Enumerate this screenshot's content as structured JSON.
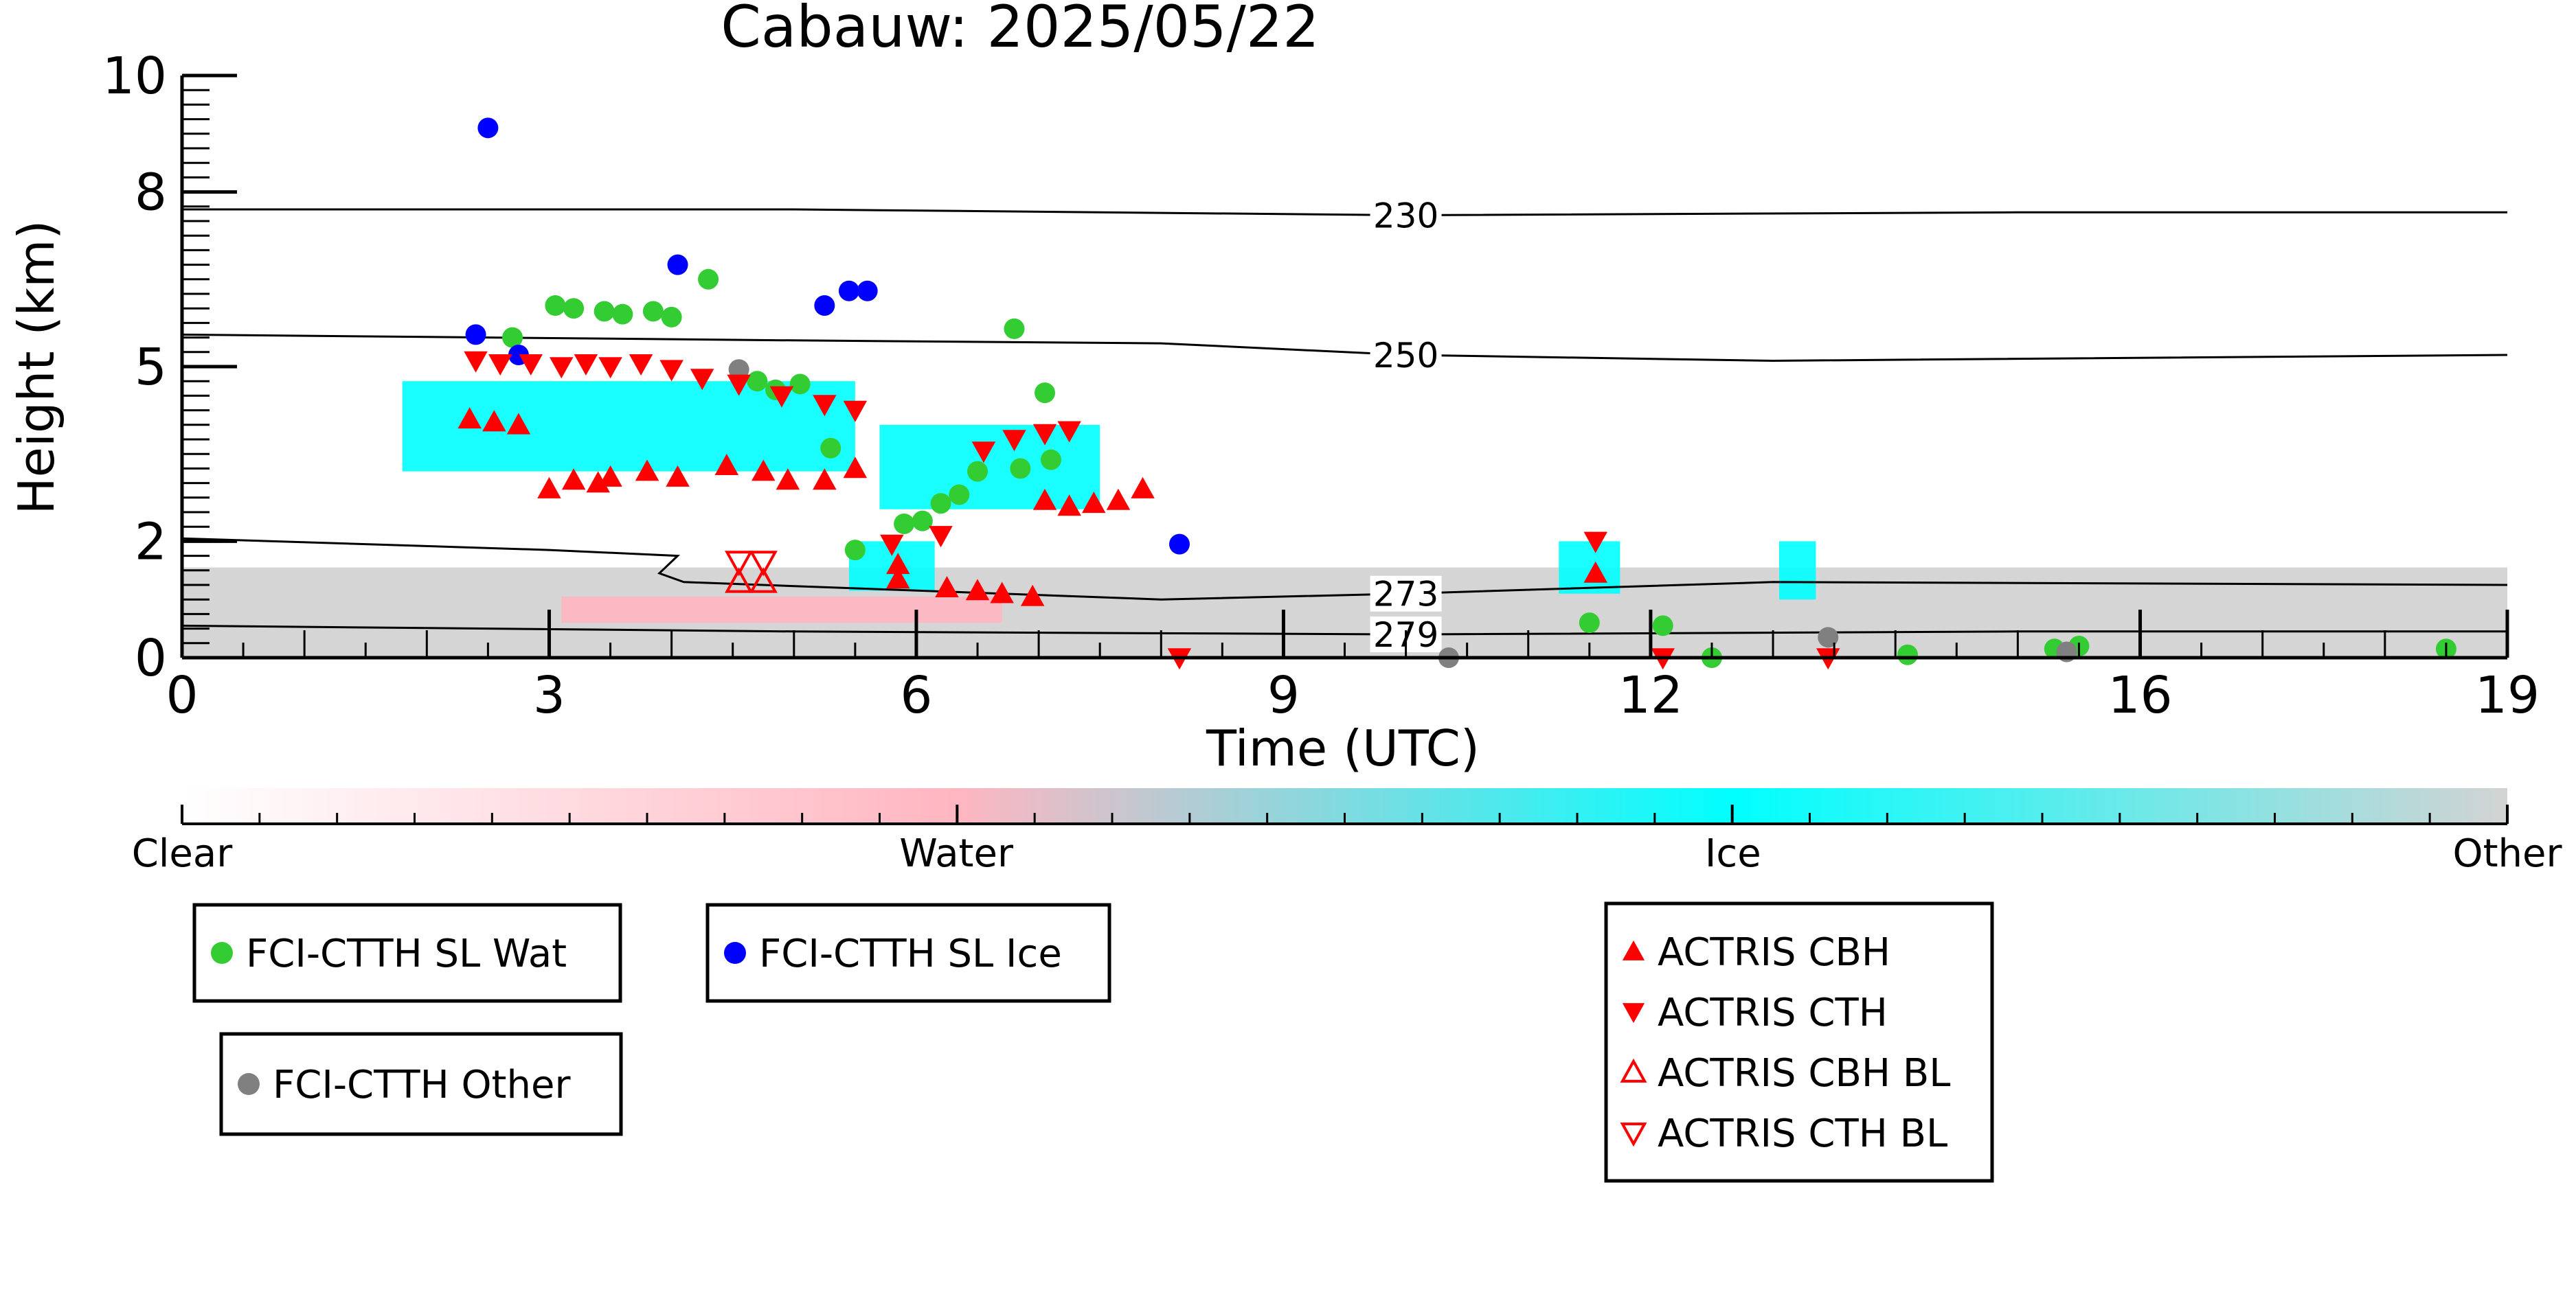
{
  "chart_data": {
    "type": "scatter",
    "title": "Cabauw: 2025/05/22",
    "xlabel": "Time (UTC)",
    "ylabel": "Height (km)",
    "xlim": [
      0,
      19
    ],
    "ylim": [
      0,
      10
    ],
    "x_ticks": [
      0,
      3,
      6,
      9,
      12,
      16,
      19
    ],
    "y_ticks": [
      0,
      2,
      5,
      8,
      10
    ],
    "grid": false,
    "colorbar": {
      "labels": [
        "Clear",
        "Water",
        "Ice",
        "Other"
      ],
      "colors": [
        "#ffffff",
        "#ffb6c1",
        "#00ffff",
        "#d3d3d3"
      ]
    },
    "isotherms": [
      {
        "label": "230",
        "points": [
          [
            0,
            7.7
          ],
          [
            5,
            7.7
          ],
          [
            10,
            7.6
          ],
          [
            15,
            7.65
          ],
          [
            19,
            7.65
          ]
        ]
      },
      {
        "label": "250",
        "points": [
          [
            0,
            5.55
          ],
          [
            5,
            5.45
          ],
          [
            8,
            5.4
          ],
          [
            10,
            5.2
          ],
          [
            13,
            5.1
          ],
          [
            19,
            5.2
          ]
        ]
      },
      {
        "label": "273",
        "points": [
          [
            0,
            2.05
          ],
          [
            3,
            1.85
          ],
          [
            4.05,
            1.75
          ],
          [
            3.9,
            1.45
          ],
          [
            4.1,
            1.3
          ],
          [
            8,
            1.0
          ],
          [
            10,
            1.1
          ],
          [
            13,
            1.3
          ],
          [
            19,
            1.25
          ]
        ]
      },
      {
        "label": "279",
        "points": [
          [
            0,
            0.55
          ],
          [
            5,
            0.45
          ],
          [
            10,
            0.4
          ],
          [
            15,
            0.45
          ],
          [
            19,
            0.45
          ]
        ]
      }
    ],
    "series": [
      {
        "name": "FCI-CTTH SL Wat",
        "color": "#33cc33",
        "marker": "circle",
        "points": [
          [
            2.7,
            5.5
          ],
          [
            3.05,
            6.05
          ],
          [
            3.2,
            6.0
          ],
          [
            3.45,
            5.95
          ],
          [
            3.6,
            5.9
          ],
          [
            3.85,
            5.95
          ],
          [
            4.0,
            5.85
          ],
          [
            4.3,
            6.5
          ],
          [
            4.7,
            4.75
          ],
          [
            4.85,
            4.6
          ],
          [
            5.05,
            4.7
          ],
          [
            5.3,
            3.6
          ],
          [
            5.5,
            1.85
          ],
          [
            5.9,
            2.3
          ],
          [
            6.05,
            2.35
          ],
          [
            6.2,
            2.65
          ],
          [
            6.35,
            2.8
          ],
          [
            6.5,
            3.2
          ],
          [
            6.8,
            5.65
          ],
          [
            6.85,
            3.25
          ],
          [
            7.05,
            4.55
          ],
          [
            7.1,
            3.4
          ],
          [
            11.5,
            0.6
          ],
          [
            12.1,
            0.55
          ],
          [
            12.5,
            0.0
          ],
          [
            14.1,
            0.05
          ],
          [
            15.3,
            0.15
          ],
          [
            15.5,
            0.2
          ],
          [
            18.5,
            0.15
          ]
        ]
      },
      {
        "name": "FCI-CTTH SL Ice",
        "color": "#0000ff",
        "marker": "circle",
        "points": [
          [
            2.4,
            5.55
          ],
          [
            2.5,
            9.1
          ],
          [
            2.75,
            5.2
          ],
          [
            4.05,
            6.75
          ],
          [
            5.25,
            6.05
          ],
          [
            5.45,
            6.3
          ],
          [
            5.6,
            6.3
          ],
          [
            8.15,
            1.95
          ]
        ]
      },
      {
        "name": "FCI-CTTH Other",
        "color": "#808080",
        "marker": "circle",
        "points": [
          [
            4.55,
            4.95
          ],
          [
            10.35,
            0.0
          ],
          [
            13.45,
            0.35
          ],
          [
            15.4,
            0.1
          ]
        ]
      },
      {
        "name": "ACTRIS CBH",
        "color": "#ff0000",
        "marker": "triangle-up",
        "points": [
          [
            2.35,
            4.1
          ],
          [
            2.55,
            4.05
          ],
          [
            2.75,
            4.0
          ],
          [
            3.0,
            2.9
          ],
          [
            3.2,
            3.05
          ],
          [
            3.4,
            3.0
          ],
          [
            3.5,
            3.1
          ],
          [
            3.8,
            3.2
          ],
          [
            4.05,
            3.1
          ],
          [
            4.45,
            3.3
          ],
          [
            4.75,
            3.2
          ],
          [
            4.95,
            3.05
          ],
          [
            5.25,
            3.05
          ],
          [
            5.5,
            3.25
          ],
          [
            5.85,
            1.6
          ],
          [
            5.85,
            1.35
          ],
          [
            6.25,
            1.2
          ],
          [
            6.5,
            1.15
          ],
          [
            6.7,
            1.1
          ],
          [
            6.95,
            1.05
          ],
          [
            7.05,
            2.7
          ],
          [
            7.25,
            2.6
          ],
          [
            7.45,
            2.65
          ],
          [
            7.65,
            2.7
          ],
          [
            7.85,
            2.9
          ],
          [
            11.55,
            1.45
          ]
        ]
      },
      {
        "name": "ACTRIS CTH",
        "color": "#ff0000",
        "marker": "triangle-down",
        "points": [
          [
            2.4,
            5.1
          ],
          [
            2.6,
            5.05
          ],
          [
            2.85,
            5.05
          ],
          [
            3.1,
            5.0
          ],
          [
            3.3,
            5.05
          ],
          [
            3.5,
            5.0
          ],
          [
            3.75,
            5.05
          ],
          [
            4.0,
            4.95
          ],
          [
            4.25,
            4.8
          ],
          [
            4.55,
            4.7
          ],
          [
            4.9,
            4.5
          ],
          [
            5.25,
            4.35
          ],
          [
            5.5,
            4.25
          ],
          [
            5.8,
            1.95
          ],
          [
            6.2,
            2.1
          ],
          [
            6.55,
            3.55
          ],
          [
            6.8,
            3.75
          ],
          [
            7.05,
            3.85
          ],
          [
            7.25,
            3.9
          ],
          [
            11.55,
            2.0
          ],
          [
            8.15,
            0.0
          ],
          [
            12.1,
            0.0
          ],
          [
            13.45,
            0.0
          ]
        ]
      },
      {
        "name": "ACTRIS CBH BL",
        "color": "#ff0000",
        "marker": "triangle-up-open",
        "points": [
          [
            4.55,
            1.3
          ],
          [
            4.75,
            1.3
          ]
        ]
      },
      {
        "name": "ACTRIS CTH BL",
        "color": "#ff0000",
        "marker": "triangle-down-open",
        "points": [
          [
            4.55,
            1.65
          ],
          [
            4.75,
            1.65
          ]
        ]
      }
    ],
    "cloud_mask": [
      {
        "class": "Other",
        "x0": 0.0,
        "x1": 19.0,
        "y0": 0.0,
        "y1": 1.55
      },
      {
        "class": "Water",
        "x0": 3.1,
        "x1": 6.7,
        "y0": 0.6,
        "y1": 1.05
      },
      {
        "class": "Ice",
        "x0": 1.8,
        "x1": 5.5,
        "y0": 3.2,
        "y1": 4.75
      },
      {
        "class": "Ice",
        "x0": 5.7,
        "x1": 7.5,
        "y0": 2.55,
        "y1": 4.0
      },
      {
        "class": "Ice",
        "x0": 5.45,
        "x1": 6.15,
        "y0": 1.15,
        "y1": 2.0
      },
      {
        "class": "Ice",
        "x0": 11.25,
        "x1": 11.75,
        "y0": 1.1,
        "y1": 2.0
      },
      {
        "class": "Ice",
        "x0": 13.05,
        "x1": 13.35,
        "y0": 1.0,
        "y1": 2.0
      }
    ]
  }
}
